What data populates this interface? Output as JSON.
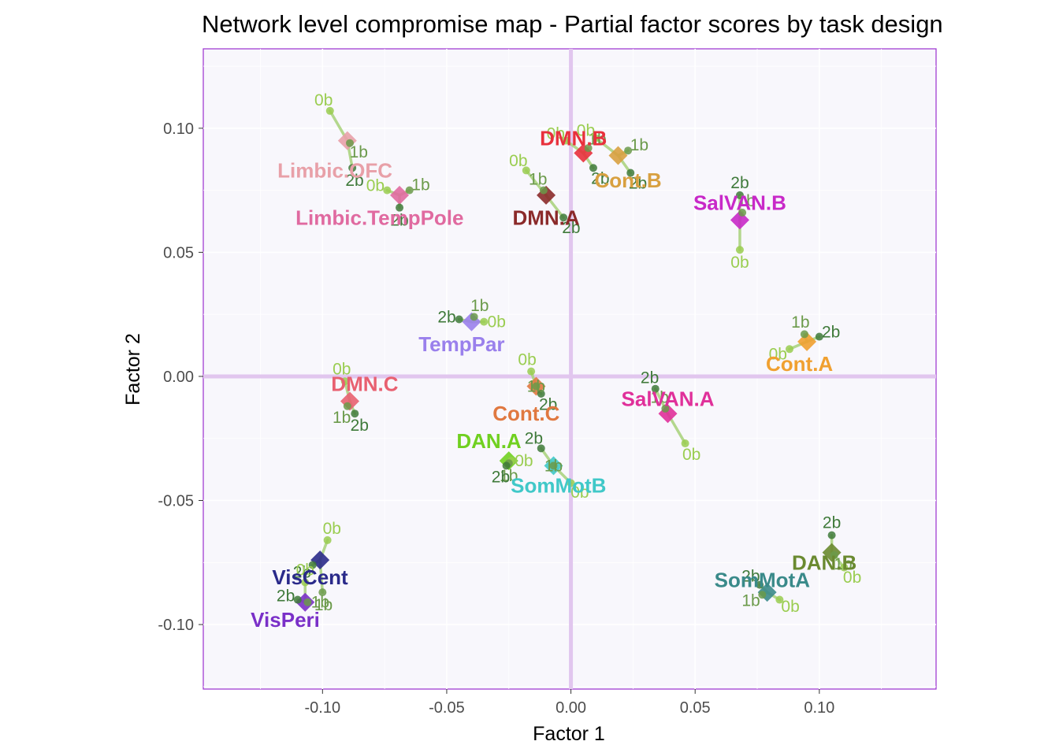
{
  "chart_data": {
    "type": "scatter",
    "title": "Network level compromise map - Partial factor scores by task design",
    "xlabel": "Factor 1",
    "ylabel": "Factor 2",
    "xlim": [
      -0.148,
      0.147
    ],
    "ylim": [
      -0.126,
      0.132
    ],
    "x_ticks": [
      -0.1,
      -0.05,
      0.0,
      0.05,
      0.1
    ],
    "y_ticks": [
      -0.1,
      -0.05,
      0.0,
      0.05,
      0.1
    ],
    "x_tick_labels": [
      "-0.10",
      "-0.05",
      "0.00",
      "0.05",
      "0.10"
    ],
    "y_tick_labels": [
      "-0.10",
      "-0.05",
      "0.00",
      "0.05",
      "0.10"
    ],
    "grid": true,
    "legend": "none",
    "colors": {
      "panel_bg": "#f8f7fc",
      "panel_border": "#9a2fcf",
      "origin_lines": "#e1c6ee",
      "grid": "#ffffff",
      "task_0b": "#9acd50",
      "task_1b": "#6b9a4a",
      "task_2b": "#3f7a3a",
      "partial_line": "#a8d27a"
    },
    "task_labels": [
      "0b",
      "1b",
      "2b"
    ],
    "networks": [
      {
        "name": "Limbic.OFC",
        "color": "#e8a0a8",
        "x": -0.09,
        "y": 0.095,
        "label_offset": [
          -0.005,
          -0.012
        ],
        "partials": {
          "0b": [
            -0.097,
            0.107
          ],
          "1b": [
            -0.089,
            0.094
          ],
          "2b": [
            -0.088,
            0.084
          ]
        }
      },
      {
        "name": "Limbic.TempPole",
        "color": "#e06aa0",
        "x": -0.069,
        "y": 0.073,
        "label_offset": [
          -0.008,
          -0.009
        ],
        "partials": {
          "0b": [
            -0.074,
            0.075
          ],
          "1b": [
            -0.065,
            0.075
          ],
          "2b": [
            -0.069,
            0.068
          ]
        }
      },
      {
        "name": "DMN.B",
        "color": "#e8303c",
        "x": 0.005,
        "y": 0.09,
        "label_offset": [
          -0.004,
          0.006
        ],
        "partials": {
          "0b": [
            -0.002,
            0.095
          ],
          "1b": [
            0.007,
            0.092
          ],
          "2b": [
            0.009,
            0.084
          ]
        }
      },
      {
        "name": "Cont.B",
        "color": "#d8a040",
        "x": 0.019,
        "y": 0.089,
        "label_offset": [
          0.004,
          -0.01
        ],
        "partials": {
          "0b": [
            0.01,
            0.096
          ],
          "1b": [
            0.023,
            0.091
          ],
          "2b": [
            0.024,
            0.082
          ]
        }
      },
      {
        "name": "DMN.A",
        "color": "#8b2a2a",
        "x": -0.01,
        "y": 0.073,
        "label_offset": [
          0.0,
          -0.009
        ],
        "partials": {
          "0b": [
            -0.018,
            0.083
          ],
          "1b": [
            -0.011,
            0.075
          ],
          "2b": [
            -0.003,
            0.064
          ]
        }
      },
      {
        "name": "SalVAN.B",
        "color": "#c829c8",
        "x": 0.068,
        "y": 0.063,
        "label_offset": [
          0.0,
          0.007
        ],
        "partials": {
          "0b": [
            0.068,
            0.051
          ],
          "1b": [
            0.069,
            0.066
          ],
          "2b": [
            0.068,
            0.073
          ]
        }
      },
      {
        "name": "TempPar",
        "color": "#9a80ec",
        "x": -0.04,
        "y": 0.022,
        "label_offset": [
          -0.004,
          -0.009
        ],
        "partials": {
          "0b": [
            -0.035,
            0.022
          ],
          "1b": [
            -0.039,
            0.024
          ],
          "2b": [
            -0.045,
            0.023
          ]
        }
      },
      {
        "name": "Cont.A",
        "color": "#f0a030",
        "x": 0.095,
        "y": 0.014,
        "label_offset": [
          -0.003,
          -0.009
        ],
        "partials": {
          "0b": [
            0.088,
            0.011
          ],
          "1b": [
            0.094,
            0.017
          ],
          "2b": [
            0.1,
            0.016
          ]
        }
      },
      {
        "name": "DMN.C",
        "color": "#e86070",
        "x": -0.089,
        "y": -0.01,
        "label_offset": [
          0.006,
          0.007
        ],
        "partials": {
          "0b": [
            -0.091,
            -0.002
          ],
          "1b": [
            -0.09,
            -0.012
          ],
          "2b": [
            -0.087,
            -0.015
          ]
        }
      },
      {
        "name": "Cont.C",
        "color": "#e07840",
        "x": -0.014,
        "y": -0.004,
        "label_offset": [
          -0.004,
          -0.011
        ],
        "partials": {
          "0b": [
            -0.016,
            0.002
          ],
          "1b": [
            -0.014,
            -0.004
          ],
          "2b": [
            -0.012,
            -0.007
          ]
        }
      },
      {
        "name": "SalVAN.A",
        "color": "#e0309a",
        "x": 0.039,
        "y": -0.015,
        "label_offset": [
          0.0,
          0.006
        ],
        "partials": {
          "0b": [
            0.046,
            -0.027
          ],
          "1b": [
            0.038,
            -0.013
          ],
          "2b": [
            0.034,
            -0.005
          ]
        }
      },
      {
        "name": "DAN.A",
        "color": "#70d020",
        "x": -0.025,
        "y": -0.034,
        "label_offset": [
          -0.008,
          0.008
        ],
        "partials": {
          "0b": [
            -0.024,
            -0.034
          ],
          "1b": [
            -0.025,
            -0.035
          ],
          "2b": [
            -0.026,
            -0.036
          ]
        }
      },
      {
        "name": "SomMotB",
        "color": "#40c8c8",
        "x": -0.007,
        "y": -0.036,
        "label_offset": [
          0.002,
          -0.008
        ],
        "partials": {
          "0b": [
            0.0,
            -0.043
          ],
          "1b": [
            -0.007,
            -0.036
          ],
          "2b": [
            -0.012,
            -0.029
          ]
        }
      },
      {
        "name": "VisCent",
        "color": "#2a2a8a",
        "x": -0.101,
        "y": -0.074,
        "label_offset": [
          -0.004,
          -0.007
        ],
        "partials": {
          "0b": [
            -0.098,
            -0.066
          ],
          "1b": [
            -0.1,
            -0.087
          ],
          "2b": [
            -0.104,
            -0.076
          ]
        }
      },
      {
        "name": "VisPeri",
        "color": "#7a30c8",
        "x": -0.107,
        "y": -0.091,
        "label_offset": [
          -0.008,
          -0.007
        ],
        "partials": {
          "0b": [
            -0.107,
            -0.083
          ],
          "1b": [
            -0.106,
            -0.091
          ],
          "2b": [
            -0.11,
            -0.09
          ]
        }
      },
      {
        "name": "DAN.B",
        "color": "#6a8a30",
        "x": 0.105,
        "y": -0.071,
        "label_offset": [
          -0.003,
          -0.004
        ],
        "partials": {
          "0b": [
            0.11,
            -0.077
          ],
          "1b": [
            0.106,
            -0.072
          ],
          "2b": [
            0.105,
            -0.064
          ]
        }
      },
      {
        "name": "SomMotA",
        "color": "#3a8a8a",
        "x": 0.079,
        "y": -0.087,
        "label_offset": [
          -0.002,
          0.005
        ],
        "partials": {
          "0b": [
            0.084,
            -0.09
          ],
          "1b": [
            0.077,
            -0.088
          ],
          "2b": [
            0.076,
            -0.084
          ]
        }
      }
    ]
  }
}
